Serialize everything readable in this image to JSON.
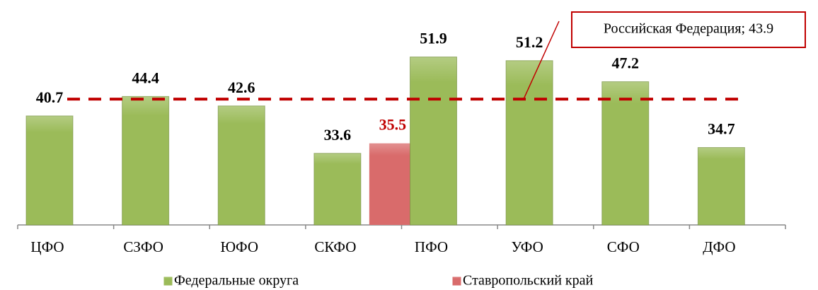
{
  "chart_data": {
    "type": "bar",
    "categories": [
      "ЦФО",
      "СЗФО",
      "ЮФО",
      "СКФО",
      "ПФО",
      "УФО",
      "СФО",
      "ДФО"
    ],
    "series": [
      {
        "name": "Федеральные округа",
        "color": "#9bbb59",
        "label_color": "#000000",
        "values": [
          40.7,
          44.4,
          42.6,
          33.6,
          51.9,
          51.2,
          47.2,
          34.7
        ]
      },
      {
        "name": "Ставропольский край",
        "color": "#d96b6b",
        "label_color": "#c00000",
        "values": [
          null,
          null,
          null,
          35.5,
          null,
          null,
          null,
          null
        ]
      }
    ],
    "reference_line": {
      "label": "Российская Федерация; 43.9",
      "value": 43.9,
      "color": "#c00000"
    },
    "ylim": [
      20,
      56
    ]
  }
}
